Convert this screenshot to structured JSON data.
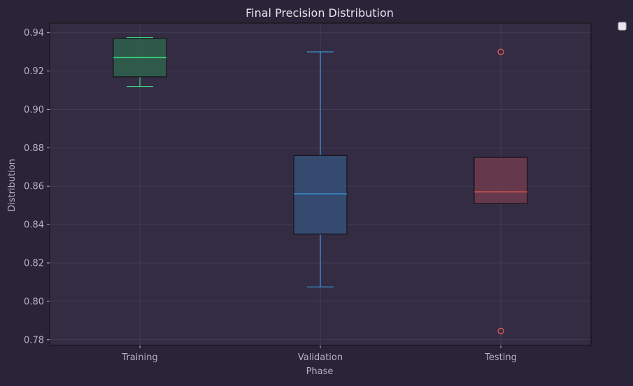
{
  "chart_data": {
    "type": "box",
    "title": "Final Precision Distribution",
    "xlabel": "Phase",
    "ylabel": "Distribution",
    "ylim": [
      0.777,
      0.945
    ],
    "yticks": [
      0.78,
      0.8,
      0.82,
      0.84,
      0.86,
      0.88,
      0.9,
      0.92,
      0.94
    ],
    "ytick_labels": [
      "0.78",
      "0.80",
      "0.82",
      "0.84",
      "0.86",
      "0.88",
      "0.90",
      "0.92",
      "0.94"
    ],
    "grid": true,
    "legend": "upper-right, empty",
    "categories": [
      "Training",
      "Validation",
      "Testing"
    ],
    "boxes": [
      {
        "category": "Training",
        "whisker_low": 0.912,
        "q1": 0.917,
        "median": 0.927,
        "q3": 0.937,
        "whisker_high": 0.9375,
        "outliers": [],
        "color": "#3ddc84",
        "fill": "#2f5e4c"
      },
      {
        "category": "Validation",
        "whisker_low": 0.8075,
        "q1": 0.835,
        "median": 0.856,
        "q3": 0.876,
        "whisker_high": 0.93,
        "outliers": [],
        "color": "#3b9ee8",
        "fill": "#344d72"
      },
      {
        "category": "Testing",
        "whisker_low": 0.851,
        "q1": 0.851,
        "median": 0.857,
        "q3": 0.875,
        "whisker_high": 0.875,
        "outliers": [
          0.93,
          0.7845
        ],
        "color": "#f05a5a",
        "fill": "#6a3a4c"
      }
    ]
  },
  "colors": {
    "page_background": "#2a2438",
    "plot_background": "#342c43",
    "grid": "#48405a",
    "text": "#d8d4e0",
    "tick_text": "#b8b2c4",
    "axis_frame": "#111111"
  }
}
